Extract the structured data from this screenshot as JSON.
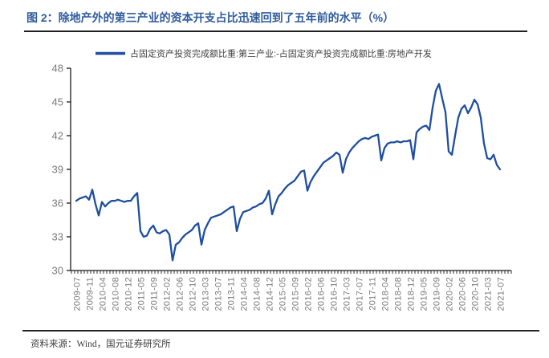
{
  "page": {
    "title": "图 2：除地产外的第三产业的资本开支占比迅速回到了五年前的水平（%）",
    "source": "资料来源：Wind，国元证券研究所"
  },
  "colors": {
    "title_blue": "#2F5B9D",
    "line_blue": "#1F4EA1",
    "axis_gray": "#7a7a7a",
    "axis_line": "#1a1a1a",
    "legend_text": "#404040"
  },
  "chart_data": {
    "type": "line",
    "title": "",
    "legend": [
      "占固定资产投资完成额比重:第三产业:-占固定资产投资完成额比重:房地产开发"
    ],
    "legend_position": "top",
    "grid": false,
    "ylim": [
      30,
      48
    ],
    "yticks": [
      30,
      33,
      36,
      39,
      42,
      45,
      48
    ],
    "xtick_every": 4,
    "x": [
      "2009-07",
      "2009-08",
      "2009-09",
      "2009-10",
      "2009-11",
      "2009-12",
      "2010-02",
      "2010-03",
      "2010-04",
      "2010-05",
      "2010-06",
      "2010-07",
      "2010-08",
      "2010-09",
      "2010-10",
      "2010-11",
      "2010-12",
      "2011-02",
      "2011-03",
      "2011-04",
      "2011-05",
      "2011-06",
      "2011-07",
      "2011-08",
      "2011-09",
      "2011-10",
      "2011-11",
      "2011-12",
      "2012-02",
      "2012-03",
      "2012-04",
      "2012-05",
      "2012-06",
      "2012-07",
      "2012-08",
      "2012-09",
      "2012-10",
      "2012-11",
      "2012-12",
      "2013-02",
      "2013-03",
      "2013-04",
      "2013-05",
      "2013-06",
      "2013-07",
      "2013-08",
      "2013-09",
      "2013-10",
      "2013-11",
      "2013-12",
      "2014-02",
      "2014-03",
      "2014-04",
      "2014-05",
      "2014-06",
      "2014-07",
      "2014-08",
      "2014-09",
      "2014-10",
      "2014-11",
      "2014-12",
      "2015-02",
      "2015-03",
      "2015-04",
      "2015-05",
      "2015-06",
      "2015-07",
      "2015-08",
      "2015-09",
      "2015-10",
      "2015-11",
      "2015-12",
      "2016-02",
      "2016-03",
      "2016-04",
      "2016-05",
      "2016-06",
      "2016-07",
      "2016-08",
      "2016-09",
      "2016-10",
      "2016-11",
      "2016-12",
      "2017-02",
      "2017-03",
      "2017-04",
      "2017-05",
      "2017-06",
      "2017-07",
      "2017-08",
      "2017-09",
      "2017-10",
      "2017-11",
      "2017-12",
      "2018-02",
      "2018-03",
      "2018-04",
      "2018-05",
      "2018-06",
      "2018-07",
      "2018-08",
      "2018-09",
      "2018-10",
      "2018-11",
      "2018-12",
      "2019-02",
      "2019-03",
      "2019-04",
      "2019-05",
      "2019-06",
      "2019-07",
      "2019-08",
      "2019-09",
      "2019-10",
      "2019-11",
      "2019-12",
      "2020-02",
      "2020-03",
      "2020-04",
      "2020-05",
      "2020-06",
      "2020-07",
      "2020-08",
      "2020-09",
      "2020-10",
      "2020-11",
      "2020-12",
      "2021-02",
      "2021-03",
      "2021-04",
      "2021-05",
      "2021-06",
      "2021-07"
    ],
    "series": [
      {
        "name": "占固定资产投资完成额比重:第三产业:-占固定资产投资完成额比重:房地产开发",
        "values": [
          36.2,
          36.4,
          36.5,
          36.6,
          36.3,
          37.2,
          35.9,
          34.9,
          36.1,
          35.7,
          36.0,
          36.2,
          36.2,
          36.3,
          36.2,
          36.1,
          36.2,
          36.2,
          36.6,
          36.9,
          33.5,
          33.0,
          33.1,
          33.7,
          34.0,
          33.4,
          33.3,
          33.5,
          33.6,
          33.2,
          30.9,
          32.3,
          32.5,
          32.9,
          33.2,
          33.4,
          33.6,
          34.0,
          34.2,
          32.3,
          33.6,
          34.2,
          34.7,
          34.8,
          34.9,
          35.0,
          35.2,
          35.4,
          35.6,
          35.7,
          33.5,
          34.6,
          35.2,
          35.3,
          35.4,
          35.6,
          35.7,
          35.9,
          36.0,
          36.4,
          37.1,
          35.0,
          35.9,
          36.6,
          36.9,
          37.3,
          37.6,
          37.8,
          38.0,
          38.4,
          38.8,
          38.9,
          37.1,
          37.9,
          38.4,
          38.8,
          39.2,
          39.6,
          39.8,
          40.0,
          40.2,
          40.5,
          40.3,
          38.7,
          39.9,
          40.5,
          40.9,
          41.2,
          41.5,
          41.7,
          41.8,
          41.7,
          41.9,
          42.0,
          42.1,
          39.8,
          40.9,
          41.3,
          41.4,
          41.4,
          41.5,
          41.4,
          41.5,
          41.5,
          41.6,
          39.9,
          42.3,
          42.6,
          42.8,
          42.9,
          42.5,
          44.5,
          46.0,
          46.6,
          45.3,
          44.1,
          40.6,
          40.3,
          42.0,
          43.6,
          44.4,
          44.7,
          44.0,
          44.5,
          45.2,
          44.8,
          43.6,
          41.3,
          40.0,
          39.9,
          40.3,
          39.4,
          39.0
        ]
      }
    ]
  }
}
